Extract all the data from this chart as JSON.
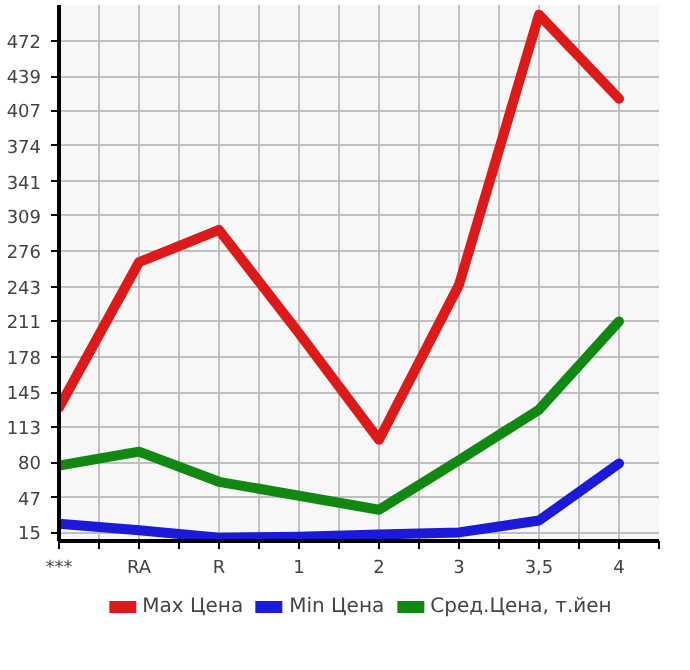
{
  "chart_data": {
    "type": "line",
    "categories": [
      "***",
      "RA",
      "R",
      "1",
      "2",
      "3",
      "3,5",
      "4"
    ],
    "series": [
      {
        "name": "Max Цена",
        "color": "#dd1a1a",
        "values": [
          131,
          266,
          296,
          200,
          101,
          245,
          496,
          418
        ]
      },
      {
        "name": "Min Цена",
        "color": "#1a1ad8",
        "values": [
          23,
          17,
          10,
          11,
          13,
          15,
          26,
          79
        ]
      },
      {
        "name": "Сред.Цена, т.йен",
        "color": "#118811",
        "values": [
          77,
          90,
          62,
          49,
          36,
          82,
          129,
          211
        ]
      }
    ],
    "ylim": [
      7,
      505
    ],
    "yticks": [
      15,
      47,
      80,
      113,
      145,
      178,
      211,
      243,
      276,
      309,
      341,
      374,
      407,
      439,
      472
    ],
    "grid": true,
    "legend": "bottom",
    "marker": "none",
    "line_style": "solid"
  }
}
